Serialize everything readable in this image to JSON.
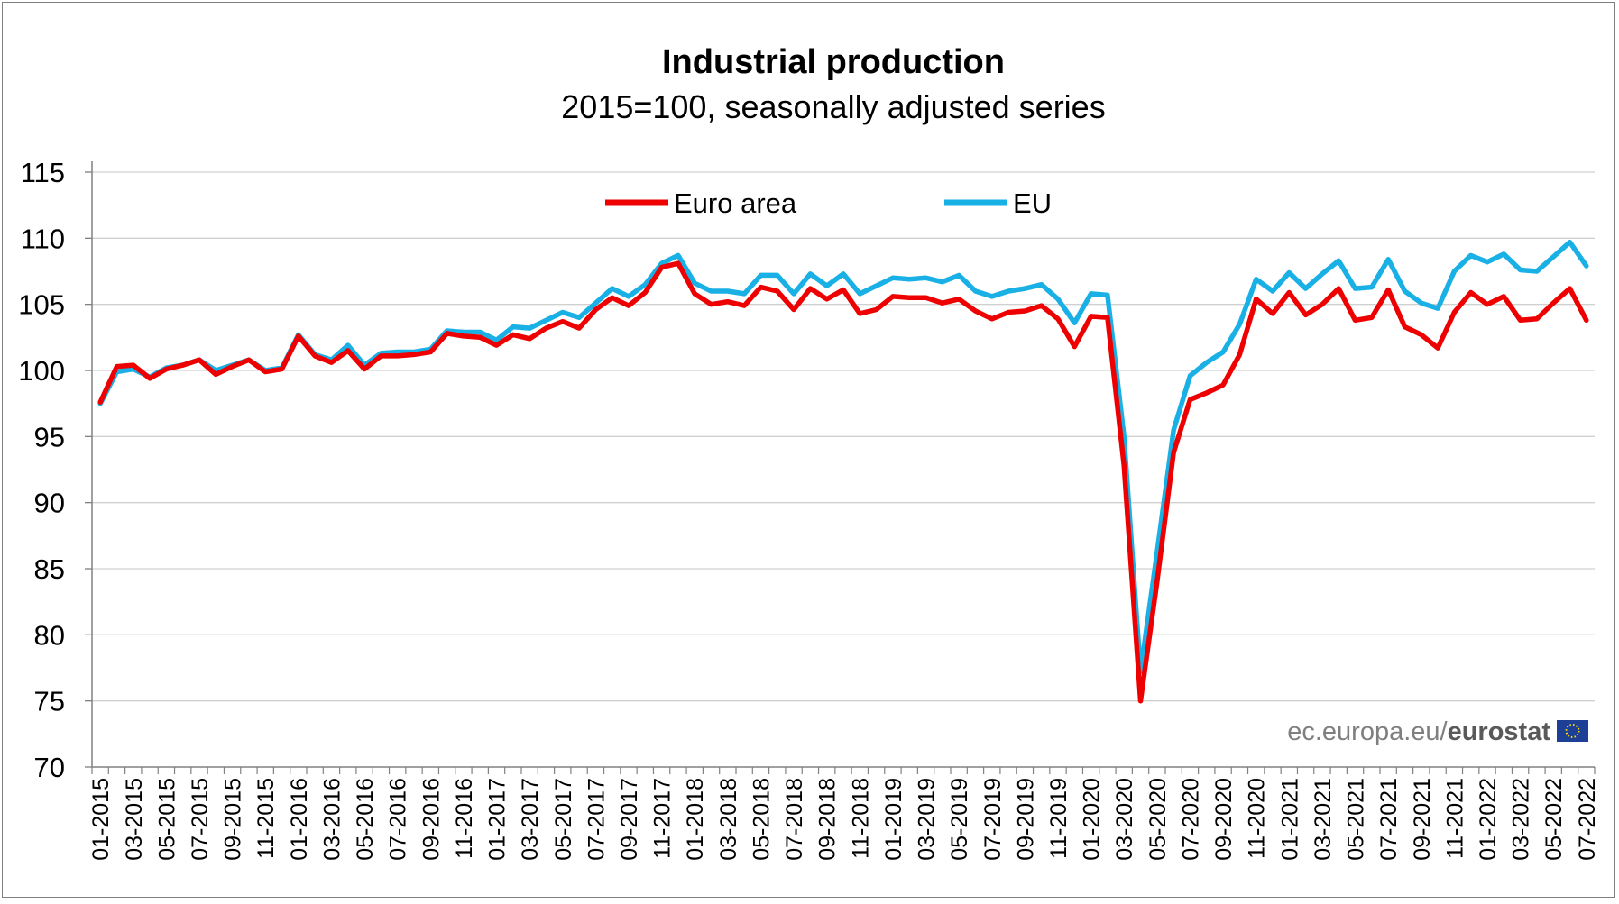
{
  "chart_data": {
    "type": "line",
    "title": "Industrial production",
    "subtitle": "2015=100, seasonally adjusted series",
    "xlabel": "",
    "ylabel": "",
    "ylim": [
      70,
      115
    ],
    "yticks": [
      70,
      75,
      80,
      85,
      90,
      95,
      100,
      105,
      110,
      115
    ],
    "grid": true,
    "legend_position": "top-center",
    "x_tick_labels": [
      "01-2015",
      "03-2015",
      "05-2015",
      "07-2015",
      "09-2015",
      "11-2015",
      "01-2016",
      "03-2016",
      "05-2016",
      "07-2016",
      "09-2016",
      "11-2016",
      "01-2017",
      "03-2017",
      "05-2017",
      "07-2017",
      "09-2017",
      "11-2017",
      "01-2018",
      "03-2018",
      "05-2018",
      "07-2018",
      "09-2018",
      "11-2018",
      "01-2019",
      "03-2019",
      "05-2019",
      "07-2019",
      "09-2019",
      "11-2019",
      "01-2020",
      "03-2020",
      "05-2020",
      "07-2020",
      "09-2020",
      "11-2020",
      "01-2021",
      "03-2021",
      "05-2021",
      "07-2021",
      "09-2021",
      "11-2021",
      "01-2022",
      "03-2022",
      "05-2022",
      "07-2022"
    ],
    "x_start": "2015-01",
    "x_end": "2022-07",
    "series": [
      {
        "name": "Euro area",
        "color": "#ee0000",
        "values": [
          97.6,
          100.3,
          100.4,
          99.4,
          100.1,
          100.4,
          100.8,
          99.7,
          100.3,
          100.8,
          99.9,
          100.1,
          102.6,
          101.1,
          100.6,
          101.5,
          100.1,
          101.1,
          101.1,
          101.2,
          101.4,
          102.8,
          102.6,
          102.5,
          101.9,
          102.7,
          102.4,
          103.2,
          103.7,
          103.2,
          104.6,
          105.5,
          104.9,
          105.9,
          107.8,
          108.1,
          105.8,
          105.0,
          105.2,
          104.9,
          106.3,
          106.0,
          104.6,
          106.2,
          105.4,
          106.1,
          104.3,
          104.6,
          105.6,
          105.5,
          105.5,
          105.1,
          105.4,
          104.5,
          103.9,
          104.4,
          104.5,
          104.9,
          103.9,
          101.8,
          104.1,
          104.0,
          92.8,
          75.0,
          84.0,
          93.8,
          97.8,
          98.3,
          98.9,
          101.2,
          105.4,
          104.3,
          105.9,
          104.2,
          105.0,
          106.2,
          103.8,
          104.0,
          106.1,
          103.3,
          102.7,
          101.7,
          104.4,
          105.9,
          105.0,
          105.6,
          103.8,
          103.9,
          105.1,
          106.2,
          103.8
        ]
      },
      {
        "name": "EU",
        "color": "#19b0e6",
        "values": [
          97.5,
          99.9,
          100.1,
          99.5,
          100.2,
          100.4,
          100.8,
          100.0,
          100.4,
          100.8,
          100.0,
          100.2,
          102.7,
          101.2,
          100.8,
          101.9,
          100.4,
          101.3,
          101.4,
          101.4,
          101.6,
          103.0,
          102.9,
          102.9,
          102.3,
          103.3,
          103.2,
          103.8,
          104.4,
          104.0,
          105.1,
          106.2,
          105.6,
          106.5,
          108.1,
          108.7,
          106.6,
          106.0,
          106.0,
          105.8,
          107.2,
          107.2,
          105.8,
          107.3,
          106.4,
          107.3,
          105.8,
          106.4,
          107.0,
          106.9,
          107.0,
          106.7,
          107.2,
          106.0,
          105.6,
          106.0,
          106.2,
          106.5,
          105.4,
          103.6,
          105.8,
          105.7,
          95.0,
          77.2,
          86.2,
          95.5,
          99.6,
          100.6,
          101.4,
          103.5,
          106.9,
          106.0,
          107.4,
          106.2,
          107.3,
          108.3,
          106.2,
          106.3,
          108.4,
          106.0,
          105.1,
          104.7,
          107.5,
          108.7,
          108.2,
          108.8,
          107.6,
          107.5,
          108.6,
          109.7,
          107.9
        ]
      }
    ]
  },
  "source": {
    "prefix": "ec.europa.eu/",
    "brand": "eurostat",
    "flag_color": "#1e3f96",
    "star_color": "#ffdd00"
  }
}
